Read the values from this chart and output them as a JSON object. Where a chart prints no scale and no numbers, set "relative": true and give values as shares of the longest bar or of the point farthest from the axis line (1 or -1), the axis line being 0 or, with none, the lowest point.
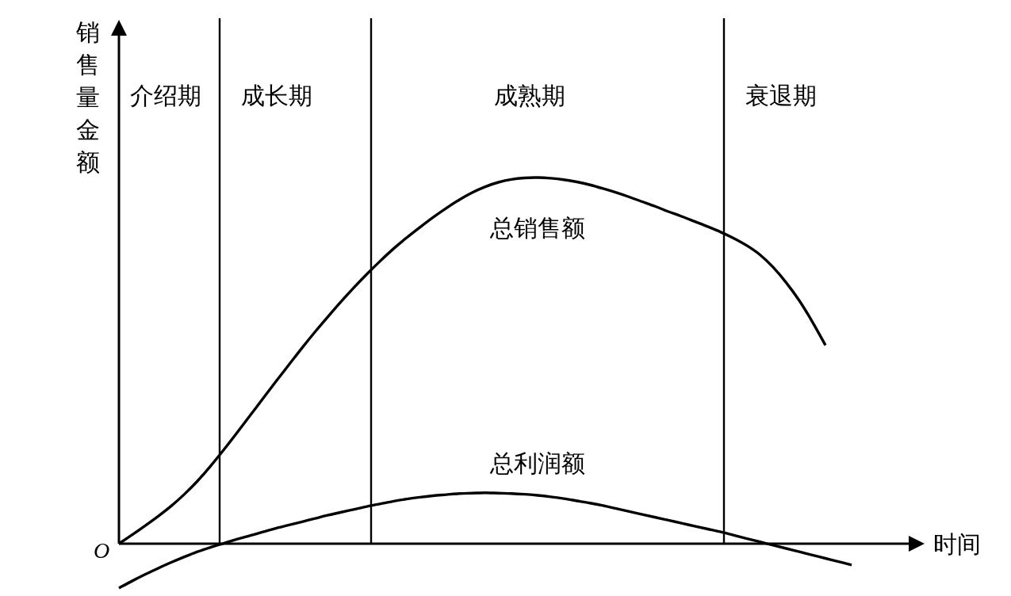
{
  "chart_data": {
    "type": "line",
    "relative": true,
    "xlabel": "时间",
    "ylabel": "销售量金额",
    "annotations": [
      "O",
      "介绍期",
      "成长期",
      "成熟期",
      "衰退期"
    ],
    "categories": [
      null,
      null,
      null,
      null,
      null,
      null,
      null,
      null,
      null,
      null,
      null,
      null,
      null,
      null,
      null,
      null,
      null,
      null,
      null,
      null,
      null,
      null,
      null,
      null,
      null,
      null,
      null,
      null,
      null,
      null,
      null,
      null,
      null,
      null,
      null,
      null,
      null,
      null,
      null,
      null,
      null,
      null,
      null,
      null,
      null,
      null,
      null,
      null,
      null,
      null,
      null,
      null,
      null,
      null,
      null,
      null,
      null
    ],
    "series": [
      {
        "name": "总销售额",
        "color": "#000000",
        "values": [
          0,
          0.024,
          0.049,
          0.075,
          0.103,
          0.135,
          0.171,
          0.212,
          0.256,
          0.302,
          0.349,
          0.396,
          0.443,
          0.489,
          0.535,
          0.579,
          0.621,
          0.662,
          0.701,
          0.738,
          0.773,
          0.806,
          0.836,
          0.864,
          0.891,
          0.916,
          0.939,
          0.959,
          0.975,
          0.987,
          0.995,
          0.999,
          1.0,
          0.998,
          0.994,
          0.988,
          0.98,
          0.97,
          0.959,
          0.947,
          0.934,
          0.921,
          0.907,
          0.894,
          0.88,
          0.866,
          0.851,
          0.834,
          0.814,
          0.789,
          0.755,
          0.713,
          0.664,
          0.606,
          0.542,
          null,
          null
        ]
      },
      {
        "name": "总利润额",
        "color": "#000000",
        "values": [
          -0.121,
          -0.102,
          -0.084,
          -0.067,
          -0.051,
          -0.036,
          -0.022,
          -0.01,
          0.001,
          0.012,
          0.022,
          0.032,
          0.042,
          0.051,
          0.06,
          0.069,
          0.078,
          0.086,
          0.094,
          0.102,
          0.109,
          0.116,
          0.122,
          0.127,
          0.131,
          0.134,
          0.137,
          0.138,
          0.139,
          0.138,
          0.137,
          0.135,
          0.132,
          0.128,
          0.123,
          0.117,
          0.111,
          0.104,
          0.096,
          0.088,
          0.08,
          0.072,
          0.064,
          0.056,
          0.048,
          0.04,
          0.032,
          0.023,
          0.014,
          0.005,
          -0.004,
          -0.013,
          -0.022,
          -0.031,
          -0.04,
          -0.049,
          -0.058
        ]
      }
    ]
  }
}
